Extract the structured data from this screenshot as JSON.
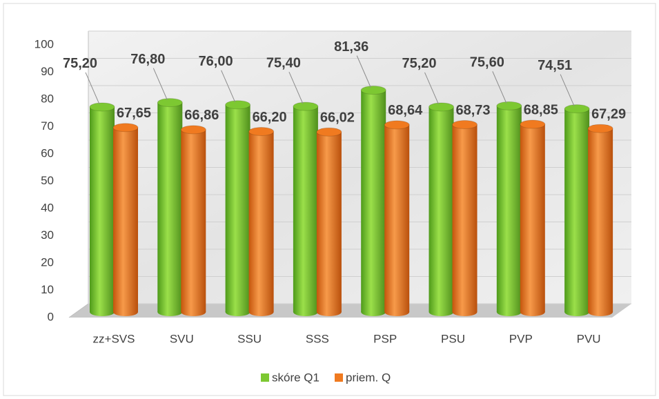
{
  "chart_data": {
    "type": "bar3d",
    "categories": [
      "zz+SVS",
      "SVU",
      "SSU",
      "SSS",
      "PSP",
      "PSU",
      "PVP",
      "PVU"
    ],
    "series": [
      {
        "name": "skóre Q1",
        "color": "#7dc832",
        "values": [
          75.2,
          76.8,
          76.0,
          75.4,
          81.36,
          75.2,
          75.6,
          74.51
        ],
        "value_labels": [
          "75,20",
          "76,80",
          "76,00",
          "75,40",
          "81,36",
          "75,20",
          "75,60",
          "74,51"
        ]
      },
      {
        "name": "priem. Q",
        "color": "#f07a20",
        "values": [
          67.65,
          66.86,
          66.2,
          66.02,
          68.64,
          68.73,
          68.85,
          67.29
        ],
        "value_labels": [
          "67,65",
          "66,86",
          "66,20",
          "66,02",
          "68,64",
          "68,73",
          "68,85",
          "67,29"
        ]
      }
    ],
    "ylim": [
      0,
      100
    ],
    "yticks": [
      0,
      10,
      20,
      30,
      40,
      50,
      60,
      70,
      80,
      90,
      100
    ],
    "grid": true,
    "legend": "bottom"
  }
}
